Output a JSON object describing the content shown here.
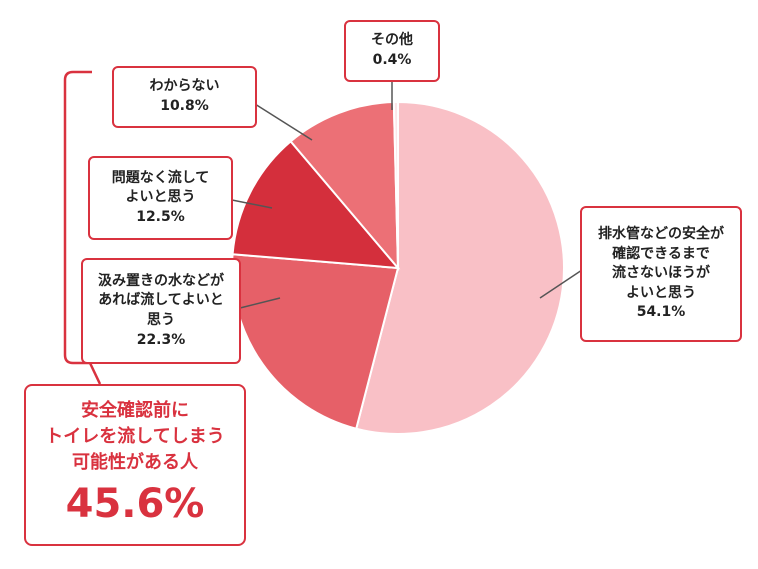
{
  "chart_data": {
    "type": "pie",
    "slices": [
      {
        "label": "排水管などの安全が確認できるまで流さないほうがよいと思う",
        "value": 54.1,
        "color": "#f9c0c6"
      },
      {
        "label": "汲み置きの水などがあれば流してよいと思う",
        "value": 22.3,
        "color": "#e66068"
      },
      {
        "label": "問題なく流してよいと思う",
        "value": 12.5,
        "color": "#d42f3c"
      },
      {
        "label": "わからない",
        "value": 10.8,
        "color": "#ec7076"
      },
      {
        "label": "その他",
        "value": 0.4,
        "color": "#fde6e9"
      }
    ],
    "start_angle_deg": 0,
    "direction": "clockwise"
  },
  "callouts": {
    "anzen": {
      "lines": [
        "排水管などの安全が",
        "確認できるまで",
        "流さないほうが",
        "よいと思う"
      ],
      "percent": "54.1%"
    },
    "kumioki": {
      "lines": [
        "汲み置きの水などが",
        "あれば流してよいと",
        "思う"
      ],
      "percent": "22.3%"
    },
    "mondai": {
      "lines": [
        "問題なく流して",
        "よいと思う"
      ],
      "percent": "12.5%"
    },
    "wakaranai": {
      "lines": [
        "わからない"
      ],
      "percent": "10.8%"
    },
    "sonota": {
      "lines": [
        "その他"
      ],
      "percent": "0.4%"
    }
  },
  "summary": {
    "lines": [
      "安全確認前に",
      "トイレを流してしまう",
      "可能性がある人"
    ],
    "percent": "45.6%"
  },
  "colors": {
    "accent": "#d9323f",
    "text": "#222222"
  }
}
